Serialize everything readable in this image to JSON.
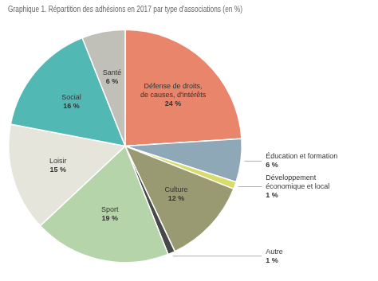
{
  "chart_data": {
    "type": "pie",
    "title": "Graphique 1. Répartition des adhésions en 2017 par type d'associations (en %)",
    "categories": [
      "Défense de droits,\nde causes, d'intérêts",
      "Éducation et formation",
      "Développement\néconomique et local",
      "Culture",
      "Autre",
      "Sport",
      "Loisir",
      "Social",
      "Santé"
    ],
    "values": [
      24,
      6,
      1,
      12,
      1,
      19,
      15,
      16,
      6
    ],
    "value_labels": [
      "24 %",
      "6 %",
      "1 %",
      "12 %",
      "1 %",
      "19 %",
      "15 %",
      "16 %",
      "6 %"
    ],
    "colors": [
      "#E8856A",
      "#8FA8B8",
      "#D8DC6A",
      "#9A9A72",
      "#484848",
      "#B5D4AA",
      "#E5E5DC",
      "#52B8B4",
      "#C0C0B8"
    ],
    "data_labels": true,
    "legend": false
  }
}
